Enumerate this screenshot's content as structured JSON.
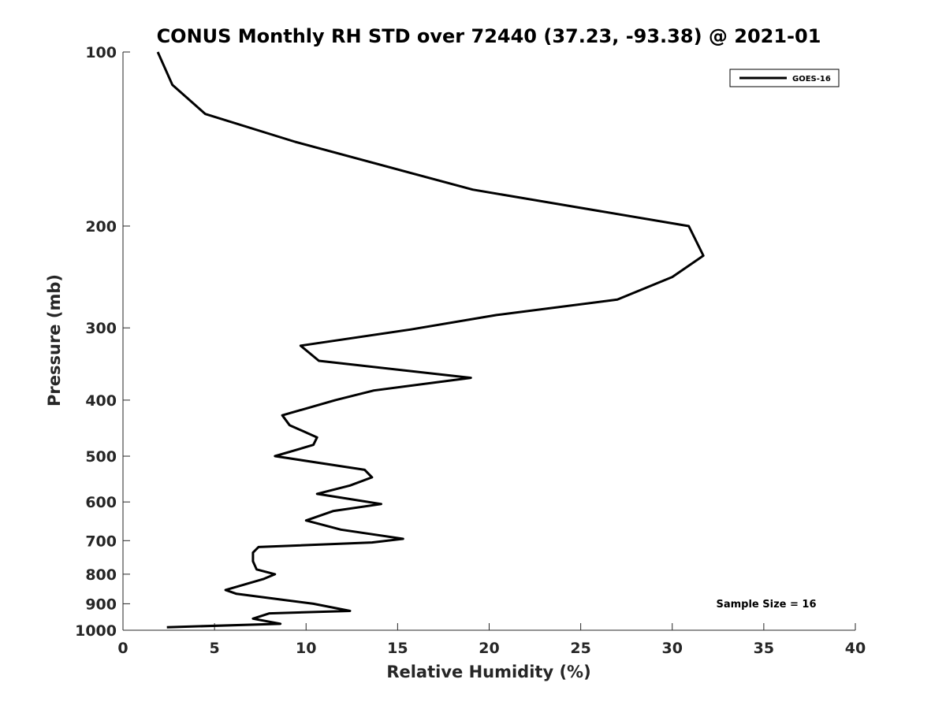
{
  "chart_data": {
    "type": "line",
    "title": "CONUS Monthly RH STD over 72440 (37.23, -93.38) @ 2021-01",
    "xlabel": "Relative Humidity (%)",
    "ylabel": "Pressure (mb)",
    "xlim": [
      0,
      40
    ],
    "ylim": [
      100,
      1000
    ],
    "yscale": "log",
    "yreversed": true,
    "grid": false,
    "legend_position": "top-right",
    "x_ticks": [
      0,
      5,
      10,
      15,
      20,
      25,
      30,
      35,
      40
    ],
    "x_tick_labels": [
      "0",
      "5",
      "10",
      "15",
      "20",
      "25",
      "30",
      "35",
      "40"
    ],
    "y_ticks": [
      100,
      200,
      300,
      400,
      500,
      600,
      700,
      800,
      900,
      1000
    ],
    "y_tick_labels": [
      "100",
      "200",
      "300",
      "400",
      "500",
      "600",
      "700",
      "800",
      "900",
      "1000"
    ],
    "annotation": "Sample Size = 16",
    "series": [
      {
        "name": "GOES-16",
        "color": "#000000",
        "x": [
          1.9,
          2.7,
          4.5,
          9.4,
          19.1,
          30.9,
          31.7,
          30.0,
          27.0,
          20.4,
          15.7,
          9.7,
          10.7,
          19.0,
          13.7,
          11.6,
          8.7,
          9.1,
          10.6,
          10.4,
          8.3,
          13.2,
          13.6,
          12.4,
          10.6,
          14.1,
          11.5,
          10.0,
          11.9,
          15.3,
          13.6,
          7.4,
          7.1,
          7.1,
          7.3,
          8.3,
          7.7,
          5.6,
          6.2,
          10.4,
          12.4,
          8.0,
          7.1,
          8.6,
          2.4
        ],
        "y": [
          100,
          114,
          128,
          143,
          173,
          200,
          225,
          245,
          268,
          285,
          302,
          322,
          342,
          366,
          385,
          400,
          425,
          442,
          464,
          478,
          500,
          528,
          544,
          562,
          581,
          605,
          622,
          646,
          670,
          695,
          705,
          718,
          734,
          760,
          785,
          800,
          815,
          852,
          865,
          900,
          926,
          935,
          955,
          975,
          988
        ]
      }
    ]
  }
}
